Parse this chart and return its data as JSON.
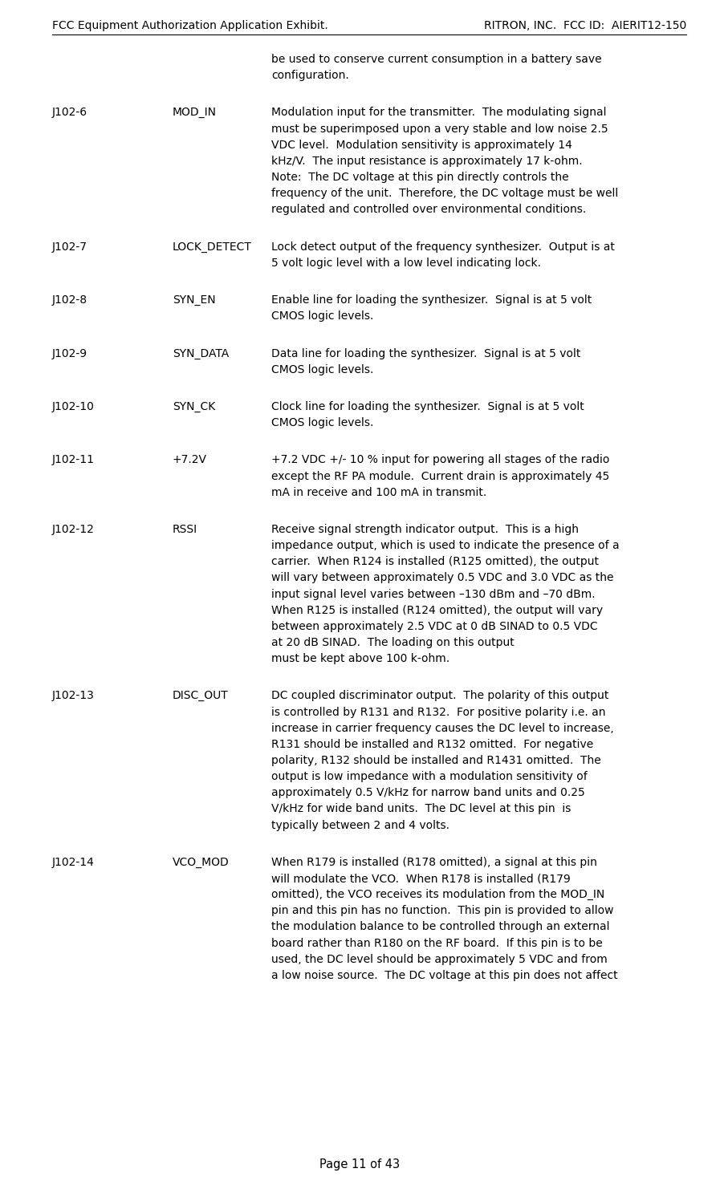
{
  "header_left": "FCC Equipment Authorization Application Exhibit.",
  "header_right": "RITRON, INC.  FCC ID:  AIERIT12-150",
  "footer": "Page 11 of 43",
  "header_fontsize": 10.0,
  "footer_fontsize": 10.5,
  "body_fontsize": 10.0,
  "bg_color": "#ffffff",
  "text_color": "#000000",
  "intro_text": "be used to conserve current consumption in a battery save\nconfiguration.",
  "entries": [
    {
      "pin": "J102-6",
      "name": "MOD_IN",
      "description": "Modulation input for the transmitter.  The modulating signal\nmust be superimposed upon a very stable and low noise 2.5\nVDC level.  Modulation sensitivity is approximately 14\nkHz/V.  The input resistance is approximately 17 k-ohm.\nNote:  The DC voltage at this pin directly controls the\nfrequency of the unit.  Therefore, the DC voltage must be well\nregulated and controlled over environmental conditions."
    },
    {
      "pin": "J102-7",
      "name": "LOCK_DETECT",
      "description": "Lock detect output of the frequency synthesizer.  Output is at\n5 volt logic level with a low level indicating lock."
    },
    {
      "pin": "J102-8",
      "name": "SYN_EN",
      "description": "Enable line for loading the synthesizer.  Signal is at 5 volt\nCMOS logic levels."
    },
    {
      "pin": "J102-9",
      "name": "SYN_DATA",
      "description": "Data line for loading the synthesizer.  Signal is at 5 volt\nCMOS logic levels."
    },
    {
      "pin": "J102-10",
      "name": "SYN_CK",
      "description": "Clock line for loading the synthesizer.  Signal is at 5 volt\nCMOS logic levels."
    },
    {
      "pin": "J102-11",
      "name": "+7.2V",
      "description": "+7.2 VDC +/- 10 % input for powering all stages of the radio\nexcept the RF PA module.  Current drain is approximately 45\nmA in receive and 100 mA in transmit."
    },
    {
      "pin": "J102-12",
      "name": "RSSI",
      "description": "Receive signal strength indicator output.  This is a high\nimpedance output, which is used to indicate the presence of a\ncarrier.  When R124 is installed (R125 omitted), the output\nwill vary between approximately 0.5 VDC and 3.0 VDC as the\ninput signal level varies between –130 dBm and –70 dBm.\nWhen R125 is installed (R124 omitted), the output will vary\nbetween approximately 2.5 VDC at 0 dB SINAD to 0.5 VDC\nat 20 dB SINAD.  The loading on this output\nmust be kept above 100 k-ohm."
    },
    {
      "pin": "J102-13",
      "name": "DISC_OUT",
      "description": "DC coupled discriminator output.  The polarity of this output\nis controlled by R131 and R132.  For positive polarity i.e. an\nincrease in carrier frequency causes the DC level to increase,\nR131 should be installed and R132 omitted.  For negative\npolarity, R132 should be installed and R1431 omitted.  The\noutput is low impedance with a modulation sensitivity of\napproximately 0.5 V/kHz for narrow band units and 0.25\nV/kHz for wide band units.  The DC level at this pin  is\ntypically between 2 and 4 volts."
    },
    {
      "pin": "J102-14",
      "name": "VCO_MOD",
      "description": "When R179 is installed (R178 omitted), a signal at this pin\nwill modulate the VCO.  When R178 is installed (R179\nomitted), the VCO receives its modulation from the MOD_IN\npin and this pin has no function.  This pin is provided to allow\nthe modulation balance to be controlled through an external\nboard rather than R180 on the RF board.  If this pin is to be\nused, the DC level should be approximately 5 VDC and from\na low noise source.  The DC voltage at this pin does not affect"
    }
  ]
}
